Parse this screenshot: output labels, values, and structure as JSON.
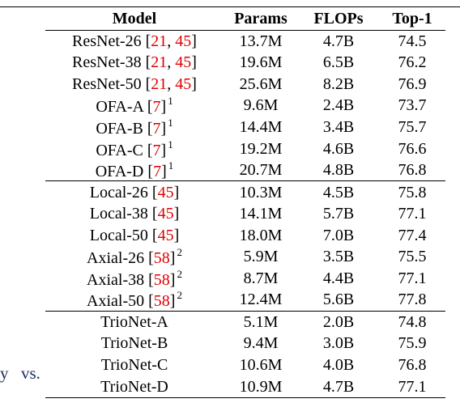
{
  "edge_text": {
    "left": "y",
    "right": "vs."
  },
  "table": {
    "headers": [
      "Model",
      "Params",
      "FLOPs",
      "Top-1"
    ],
    "rows": [
      {
        "model": "ResNet-26",
        "cite_a": "21",
        "sep": ", ",
        "cite_b": "45",
        "footnote": "",
        "params": "13.7M",
        "flops": "4.7B",
        "top1": "74.5",
        "group_start": false
      },
      {
        "model": "ResNet-38",
        "cite_a": "21",
        "sep": ", ",
        "cite_b": "45",
        "footnote": "",
        "params": "19.6M",
        "flops": "6.5B",
        "top1": "76.2",
        "group_start": false
      },
      {
        "model": "ResNet-50",
        "cite_a": "21",
        "sep": ", ",
        "cite_b": "45",
        "footnote": "",
        "params": "25.6M",
        "flops": "8.2B",
        "top1": "76.9",
        "group_start": false
      },
      {
        "model": "OFA-A",
        "cite_a": "7",
        "sep": "",
        "cite_b": "",
        "footnote": "1",
        "params": "9.6M",
        "flops": "2.4B",
        "top1": "73.7",
        "group_start": false
      },
      {
        "model": "OFA-B",
        "cite_a": "7",
        "sep": "",
        "cite_b": "",
        "footnote": "1",
        "params": "14.4M",
        "flops": "3.4B",
        "top1": "75.7",
        "group_start": false
      },
      {
        "model": "OFA-C",
        "cite_a": "7",
        "sep": "",
        "cite_b": "",
        "footnote": "1",
        "params": "19.2M",
        "flops": "4.6B",
        "top1": "76.6",
        "group_start": false
      },
      {
        "model": "OFA-D",
        "cite_a": "7",
        "sep": "",
        "cite_b": "",
        "footnote": "1",
        "params": "20.7M",
        "flops": "4.8B",
        "top1": "76.8",
        "group_start": false
      },
      {
        "model": "Local-26",
        "cite_a": "45",
        "sep": "",
        "cite_b": "",
        "footnote": "",
        "params": "10.3M",
        "flops": "4.5B",
        "top1": "75.8",
        "group_start": true
      },
      {
        "model": "Local-38",
        "cite_a": "45",
        "sep": "",
        "cite_b": "",
        "footnote": "",
        "params": "14.1M",
        "flops": "5.7B",
        "top1": "77.1",
        "group_start": false
      },
      {
        "model": "Local-50",
        "cite_a": "45",
        "sep": "",
        "cite_b": "",
        "footnote": "",
        "params": "18.0M",
        "flops": "7.0B",
        "top1": "77.4",
        "group_start": false
      },
      {
        "model": "Axial-26",
        "cite_a": "58",
        "sep": "",
        "cite_b": "",
        "footnote": "2",
        "params": "5.9M",
        "flops": "3.5B",
        "top1": "75.5",
        "group_start": false
      },
      {
        "model": "Axial-38",
        "cite_a": "58",
        "sep": "",
        "cite_b": "",
        "footnote": "2",
        "params": "8.7M",
        "flops": "4.4B",
        "top1": "77.1",
        "group_start": false
      },
      {
        "model": "Axial-50",
        "cite_a": "58",
        "sep": "",
        "cite_b": "",
        "footnote": "2",
        "params": "12.4M",
        "flops": "5.6B",
        "top1": "77.8",
        "group_start": false
      },
      {
        "model": "TrioNet-A",
        "cite_a": "",
        "sep": "",
        "cite_b": "",
        "footnote": "",
        "params": "5.1M",
        "flops": "2.0B",
        "top1": "74.8",
        "group_start": true
      },
      {
        "model": "TrioNet-B",
        "cite_a": "",
        "sep": "",
        "cite_b": "",
        "footnote": "",
        "params": "9.4M",
        "flops": "3.0B",
        "top1": "75.9",
        "group_start": false
      },
      {
        "model": "TrioNet-C",
        "cite_a": "",
        "sep": "",
        "cite_b": "",
        "footnote": "",
        "params": "10.6M",
        "flops": "4.0B",
        "top1": "76.8",
        "group_start": false
      },
      {
        "model": "TrioNet-D",
        "cite_a": "",
        "sep": "",
        "cite_b": "",
        "footnote": "",
        "params": "10.9M",
        "flops": "4.7B",
        "top1": "77.1",
        "group_start": false
      }
    ]
  }
}
